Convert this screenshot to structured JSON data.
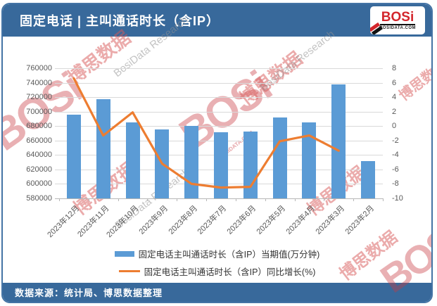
{
  "header": {
    "title": "固定电话 | 主叫通话时长（含IP）",
    "logo": {
      "text": "BOSi",
      "subtext": "BOSIDATA.COM"
    }
  },
  "footer": {
    "source": "数据来源：统计局、博思数据整理"
  },
  "watermark": {
    "brand": "BOSi",
    "cn": "博思数据",
    "en": "BosiData Research",
    "site": "BOSIDATA.COM"
  },
  "legend": [
    {
      "label": "固定电话主叫通话时长（含IP）当期值(万分钟)",
      "swatch": "bar",
      "color": "#5B9BD5"
    },
    {
      "label": "固定电话主叫通话时长（含IP）同比增长(%)",
      "swatch": "line",
      "color": "#ED7D31"
    }
  ],
  "chart_data": {
    "type": "combo",
    "title": "固定电话 | 主叫通话时长（含IP）",
    "categories": [
      "2023年12月",
      "2023年11月",
      "2023年10月",
      "2023年9月",
      "2023年8月",
      "2023年7月",
      "2023年6月",
      "2023年5月",
      "2023年4月",
      "2023年3月",
      "2023年2月"
    ],
    "series": [
      {
        "name": "固定电话主叫通话时长（含IP）当期值(万分钟)",
        "type": "bar",
        "axis": "left",
        "color": "#5B9BD5",
        "values": [
          696000,
          717000,
          685000,
          675000,
          680000,
          671000,
          672000,
          692000,
          685000,
          738000,
          632000
        ]
      },
      {
        "name": "固定电话主叫通话时长（含IP）同比增长(%)",
        "type": "line",
        "axis": "right",
        "color": "#ED7D31",
        "values": [
          6.6,
          -1.3,
          1.9,
          -5.2,
          -8.0,
          -8.5,
          -8.4,
          -2.1,
          -1.3,
          -3.4,
          null
        ]
      }
    ],
    "left_axis": {
      "min": 580000,
      "max": 760000,
      "step": 20000,
      "ticks": [
        "760000",
        "740000",
        "720000",
        "700000",
        "680000",
        "660000",
        "640000",
        "620000",
        "600000",
        "580000"
      ]
    },
    "right_axis": {
      "min": -10,
      "max": 8,
      "step": 2,
      "ticks": [
        "8",
        "6",
        "4",
        "2",
        "0",
        "-2",
        "-4",
        "-6",
        "-8",
        "-10"
      ]
    },
    "grid": true,
    "legend_position": "bottom"
  }
}
